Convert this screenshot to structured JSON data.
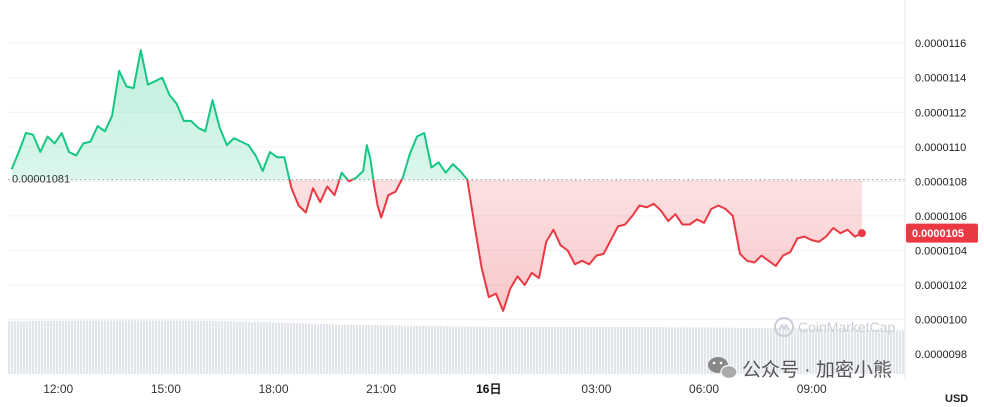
{
  "chart_data": {
    "type": "area",
    "unit": "USD",
    "ref_value": 1.081e-05,
    "ref_label": "0.00001081",
    "current_value": 1.05e-05,
    "current_label": "0.0000105",
    "y_ticks": [
      "0.0000116",
      "0.0000114",
      "0.0000112",
      "0.0000110",
      "0.0000108",
      "0.0000106",
      "0.0000104",
      "0.0000102",
      "0.0000100",
      "0.0000098"
    ],
    "y_tick_values": [
      1.16e-05,
      1.14e-05,
      1.12e-05,
      1.1e-05,
      1.08e-05,
      1.06e-05,
      1.04e-05,
      1.02e-05,
      1e-05,
      9.8e-06
    ],
    "ylim": [
      9.65e-06,
      1.185e-05
    ],
    "x_ticks": [
      {
        "label": "12:00",
        "h": 12.0,
        "bold": false
      },
      {
        "label": "15:00",
        "h": 15.0,
        "bold": false
      },
      {
        "label": "18:00",
        "h": 18.0,
        "bold": false
      },
      {
        "label": "21:00",
        "h": 21.0,
        "bold": false
      },
      {
        "label": "16日",
        "h": 24.0,
        "bold": true
      },
      {
        "label": "03:00",
        "h": 27.0,
        "bold": false
      },
      {
        "label": "06:00",
        "h": 30.0,
        "bold": false
      },
      {
        "label": "09:00",
        "h": 33.0,
        "bold": false
      }
    ],
    "xlim": [
      10.6,
      35.6
    ],
    "colors": {
      "up": "#16c784",
      "down": "#ea3943",
      "volume": "#e2e5ea",
      "grid": "#eff2f5"
    },
    "series": [
      {
        "x": [
          10.7,
          10.9,
          11.1,
          11.3,
          11.5,
          11.7,
          11.9,
          12.1,
          12.3,
          12.5,
          12.7,
          12.9,
          13.1,
          13.3,
          13.5,
          13.7,
          13.9,
          14.1,
          14.3,
          14.5,
          14.7,
          14.9,
          15.1,
          15.3,
          15.5,
          15.7,
          15.9,
          16.1,
          16.3,
          16.5,
          16.7,
          16.9,
          17.1,
          17.3,
          17.5,
          17.7,
          17.9,
          18.1,
          18.3,
          18.5,
          18.7,
          18.9,
          19.1,
          19.3,
          19.5,
          19.7,
          19.9,
          20.1,
          20.3,
          20.5,
          20.6,
          20.7,
          20.8,
          20.9,
          21.0,
          21.2,
          21.4,
          21.6,
          21.8,
          22.0,
          22.2,
          22.4,
          22.6,
          22.8,
          23.0,
          23.2,
          23.4,
          23.6,
          23.8,
          24.0,
          24.2,
          24.4,
          24.6,
          24.8,
          25.0,
          25.2,
          25.4,
          25.6,
          25.8,
          26.0,
          26.2,
          26.4,
          26.6,
          26.8,
          27.0,
          27.2,
          27.4,
          27.6,
          27.8,
          28.0,
          28.2,
          28.4,
          28.6,
          28.8,
          29.0,
          29.2,
          29.4,
          29.6,
          29.8,
          30.0,
          30.2,
          30.4,
          30.6,
          30.8,
          31.0,
          31.2,
          31.4,
          31.6,
          31.8,
          32.0,
          32.2,
          32.4,
          32.6,
          32.8,
          33.0,
          33.2,
          33.4,
          33.6,
          33.8,
          34.0,
          34.2,
          34.4
        ],
        "y": [
          1.087e-05,
          1.097e-05,
          1.108e-05,
          1.107e-05,
          1.097e-05,
          1.106e-05,
          1.102e-05,
          1.108e-05,
          1.097e-05,
          1.095e-05,
          1.102e-05,
          1.103e-05,
          1.112e-05,
          1.109e-05,
          1.118e-05,
          1.144e-05,
          1.135e-05,
          1.134e-05,
          1.156e-05,
          1.136e-05,
          1.138e-05,
          1.14e-05,
          1.13e-05,
          1.125e-05,
          1.115e-05,
          1.115e-05,
          1.111e-05,
          1.109e-05,
          1.127e-05,
          1.111e-05,
          1.101e-05,
          1.105e-05,
          1.103e-05,
          1.101e-05,
          1.095e-05,
          1.086e-05,
          1.097e-05,
          1.094e-05,
          1.094e-05,
          1.076e-05,
          1.066e-05,
          1.062e-05,
          1.076e-05,
          1.068e-05,
          1.077e-05,
          1.072e-05,
          1.085e-05,
          1.08e-05,
          1.082e-05,
          1.086e-05,
          1.101e-05,
          1.093e-05,
          1.078e-05,
          1.066e-05,
          1.059e-05,
          1.072e-05,
          1.074e-05,
          1.082e-05,
          1.096e-05,
          1.106e-05,
          1.108e-05,
          1.088e-05,
          1.091e-05,
          1.085e-05,
          1.09e-05,
          1.086e-05,
          1.081e-05,
          1.055e-05,
          1.03e-05,
          1.013e-05,
          1.015e-05,
          1.005e-05,
          1.018e-05,
          1.025e-05,
          1.02e-05,
          1.027e-05,
          1.024e-05,
          1.045e-05,
          1.052e-05,
          1.043e-05,
          1.04e-05,
          1.032e-05,
          1.034e-05,
          1.032e-05,
          1.037e-05,
          1.038e-05,
          1.046e-05,
          1.054e-05,
          1.055e-05,
          1.06e-05,
          1.066e-05,
          1.065e-05,
          1.067e-05,
          1.063e-05,
          1.057e-05,
          1.061e-05,
          1.055e-05,
          1.055e-05,
          1.058e-05,
          1.056e-05,
          1.064e-05,
          1.066e-05,
          1.064e-05,
          1.06e-05,
          1.038e-05,
          1.034e-05,
          1.033e-05,
          1.037e-05,
          1.034e-05,
          1.031e-05,
          1.037e-05,
          1.039e-05,
          1.047e-05,
          1.048e-05,
          1.046e-05,
          1.045e-05,
          1.048e-05,
          1.053e-05,
          1.05e-05,
          1.052e-05,
          1.048e-05,
          1.05e-05
        ]
      }
    ],
    "volume": {
      "x": [
        10.6,
        12.0,
        14.0,
        16.0,
        18.0,
        20.0,
        22.0,
        24.0,
        26.0,
        28.0,
        30.0,
        32.0,
        34.0,
        35.4
      ],
      "level": [
        0.94,
        0.95,
        0.96,
        0.95,
        0.92,
        0.88,
        0.86,
        0.84,
        0.84,
        0.84,
        0.83,
        0.82,
        0.8,
        0.78
      ]
    },
    "watermark": "CoinMarketCap",
    "badge": "公众号 · 加密小熊"
  }
}
